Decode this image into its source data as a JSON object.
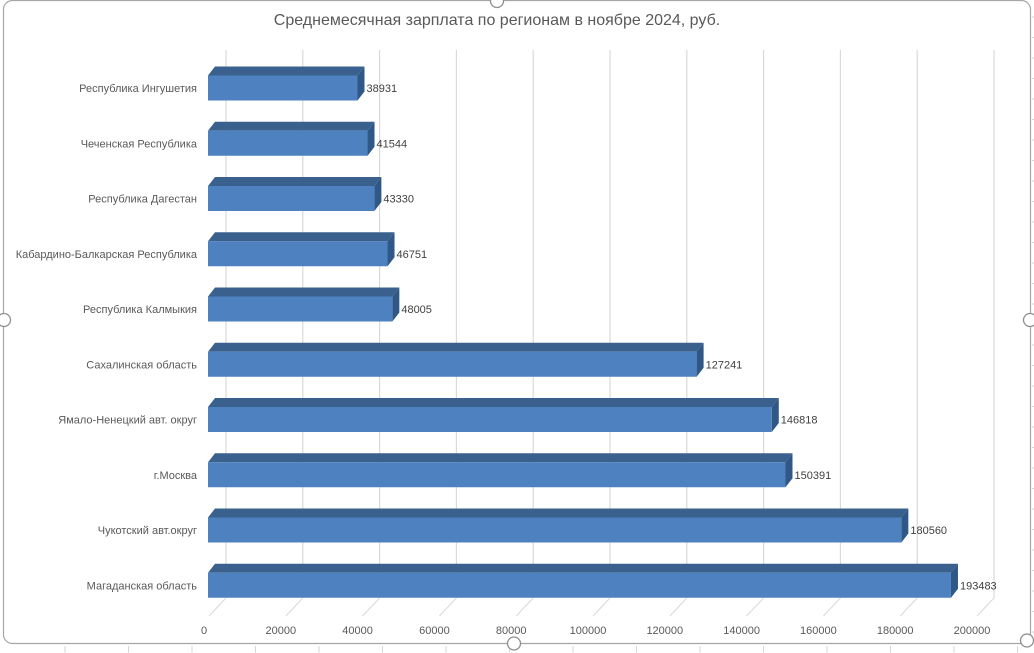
{
  "chart_data": {
    "type": "bar",
    "orientation": "horizontal",
    "style_3d": true,
    "title": "Среднемесячная зарплата по регионам в ноябре 2024, руб.",
    "categories": [
      "Республика Ингушетия",
      "Чеченская Республика",
      "Республика Дагестан",
      "Кабардино-Балкарская Республика",
      "Республика Калмыкия",
      "Сахалинская область",
      "Ямало-Ненецкий авт. округ",
      "г.Москва",
      "Чукотский авт.округ",
      "Магаданская область"
    ],
    "values": [
      38931,
      41544,
      43330,
      46751,
      48005,
      127241,
      146818,
      150391,
      180560,
      193483
    ],
    "data_labels": [
      "38931",
      "41544",
      "43330",
      "46751",
      "48005",
      "127241",
      "146818",
      "150391",
      "180560",
      "193483"
    ],
    "category_order": "top-to-bottom",
    "xlabel": "",
    "ylabel": "",
    "xlim": [
      0,
      200000
    ],
    "x_tick_step": 20000,
    "x_tick_labels": [
      "0",
      "20000",
      "40000",
      "60000",
      "80000",
      "100000",
      "120000",
      "140000",
      "160000",
      "180000",
      "200000"
    ],
    "grid": true,
    "legend": "none",
    "colors": {
      "bar_front": "#4E81BF",
      "bar_top": "#3A618E",
      "bar_end": "#2F5886",
      "gridline": "#D9D9D9",
      "axis_text": "#595959",
      "category_text": "#595959",
      "data_label_text": "#404040",
      "title_text": "#595959"
    }
  },
  "chart_frame": {
    "selected": true,
    "border_color": "#A6A6A6",
    "background": "#FFFFFF",
    "handle_fill": "#FFFFFF",
    "handle_border": "#8F8F8F",
    "handles": [
      "top-center",
      "left-middle",
      "right-middle",
      "bottom-center",
      "bottom-right-corner"
    ]
  },
  "worksheet": {
    "gridline_color": "#D6D6D6"
  }
}
